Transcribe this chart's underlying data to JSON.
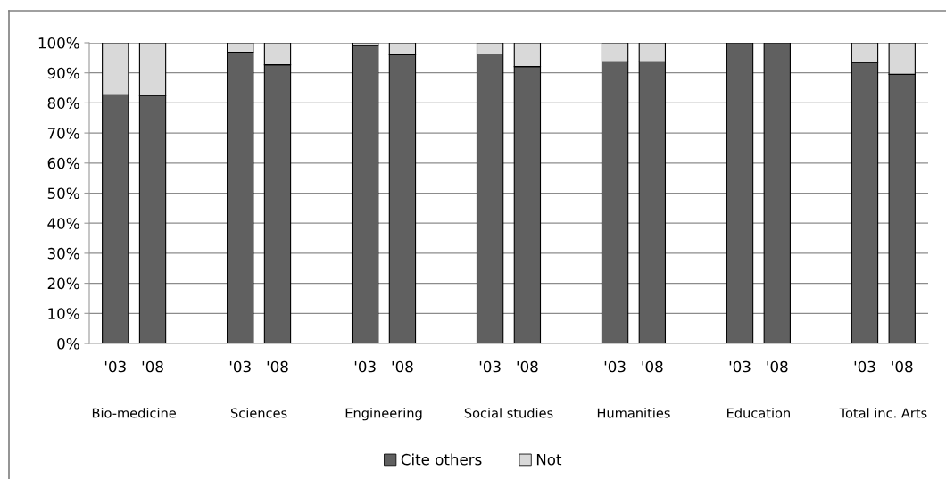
{
  "chart_data": {
    "type": "bar",
    "stacked": true,
    "categories": [
      "'03",
      "'08",
      "'03",
      "'08",
      "'03",
      "'08",
      "'03",
      "'08",
      "'03",
      "'08",
      "'03",
      "'08",
      "'03",
      "'08"
    ],
    "series": [
      {
        "name": "Cite others",
        "color": "#606060",
        "values": [
          82.7,
          82.4,
          96.9,
          92.7,
          99.1,
          96.0,
          96.3,
          92.1,
          93.7,
          93.7,
          100,
          100,
          93.4,
          89.5
        ]
      },
      {
        "name": "Not",
        "color": "#d9d9d9",
        "values": [
          17.3,
          17.6,
          3.1,
          7.3,
          0.9,
          4.0,
          3.7,
          7.9,
          6.3,
          6.3,
          0,
          0,
          6.6,
          10.5
        ]
      }
    ],
    "annotations": [
      "Bio-medicine",
      "Sciences",
      "Engineering",
      "Social studies",
      "Humanities",
      "Education",
      "Total inc. Arts"
    ],
    "ylim": [
      0,
      100
    ],
    "yticks": [
      {
        "value": 0,
        "label": "0%"
      },
      {
        "value": 10,
        "label": "10%"
      },
      {
        "value": 20,
        "label": "20%"
      },
      {
        "value": 30,
        "label": "30%"
      },
      {
        "value": 40,
        "label": "40%"
      },
      {
        "value": 50,
        "label": "50%"
      },
      {
        "value": 60,
        "label": "60%"
      },
      {
        "value": 70,
        "label": "70%"
      },
      {
        "value": 80,
        "label": "80%"
      },
      {
        "value": 90,
        "label": "90%"
      },
      {
        "value": 100,
        "label": "100%"
      }
    ],
    "grid": "y",
    "legend": "bottom"
  }
}
